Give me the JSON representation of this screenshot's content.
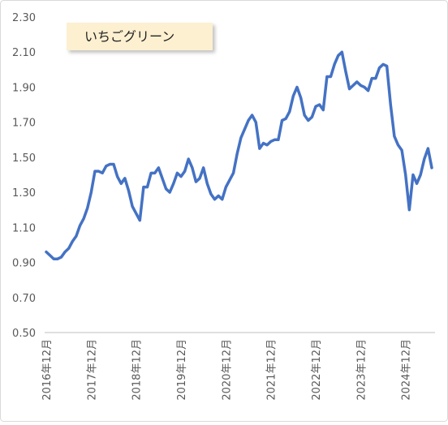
{
  "chart_data": {
    "type": "line",
    "categories": [
      "2016年12月",
      null,
      null,
      null,
      null,
      null,
      null,
      null,
      null,
      null,
      null,
      null,
      "2017年12月",
      null,
      null,
      null,
      null,
      null,
      null,
      null,
      null,
      null,
      null,
      null,
      "2018年12月",
      null,
      null,
      null,
      null,
      null,
      null,
      null,
      null,
      null,
      null,
      null,
      "2019年12月",
      null,
      null,
      null,
      null,
      null,
      null,
      null,
      null,
      null,
      null,
      null,
      "2020年12月",
      null,
      null,
      null,
      null,
      null,
      null,
      null,
      null,
      null,
      null,
      null,
      "2021年12月",
      null,
      null,
      null,
      null,
      null,
      null,
      null,
      null,
      null,
      null,
      null,
      "2022年12月",
      null,
      null,
      null,
      null,
      null,
      null,
      null,
      null,
      null,
      null,
      null,
      "2023年12月",
      null,
      null,
      null,
      null,
      null,
      null,
      null,
      null,
      null,
      null,
      null,
      "2024年12月",
      null,
      null,
      null,
      null,
      null,
      null,
      null
    ],
    "series": [
      {
        "name": "いちごグリーン",
        "color": "#4472c4",
        "values": [
          0.96,
          0.94,
          0.92,
          0.92,
          0.93,
          0.96,
          0.98,
          1.02,
          1.05,
          1.11,
          1.15,
          1.21,
          1.3,
          1.42,
          1.42,
          1.41,
          1.45,
          1.46,
          1.46,
          1.39,
          1.35,
          1.38,
          1.31,
          1.22,
          1.18,
          1.14,
          1.33,
          1.33,
          1.41,
          1.41,
          1.44,
          1.38,
          1.32,
          1.3,
          1.35,
          1.41,
          1.39,
          1.42,
          1.49,
          1.44,
          1.36,
          1.38,
          1.44,
          1.35,
          1.29,
          1.26,
          1.28,
          1.26,
          1.33,
          1.37,
          1.41,
          1.52,
          1.61,
          1.66,
          1.71,
          1.74,
          1.7,
          1.55,
          1.58,
          1.57,
          1.59,
          1.6,
          1.6,
          1.71,
          1.72,
          1.76,
          1.85,
          1.9,
          1.84,
          1.74,
          1.71,
          1.73,
          1.79,
          1.8,
          1.77,
          1.96,
          1.96,
          2.03,
          2.08,
          2.1,
          1.99,
          1.89,
          1.91,
          1.93,
          1.91,
          1.9,
          1.88,
          1.95,
          1.95,
          2.01,
          2.03,
          2.02,
          1.8,
          1.62,
          1.57,
          1.54,
          1.4,
          1.2,
          1.4,
          1.35,
          1.4,
          1.49,
          1.55,
          1.44
        ]
      }
    ],
    "ylim": [
      0.5,
      2.3
    ],
    "yticks": [
      {
        "value": 0.5,
        "label": "0.50"
      },
      {
        "value": 0.7,
        "label": "0.70"
      },
      {
        "value": 0.9,
        "label": "0.90"
      },
      {
        "value": 1.1,
        "label": "1.10"
      },
      {
        "value": 1.3,
        "label": "1.30"
      },
      {
        "value": 1.5,
        "label": "1.50"
      },
      {
        "value": 1.7,
        "label": "1.70"
      },
      {
        "value": 1.9,
        "label": "1.90"
      },
      {
        "value": 2.1,
        "label": "2.10"
      },
      {
        "value": 2.3,
        "label": "2.30"
      }
    ],
    "grid": false
  }
}
